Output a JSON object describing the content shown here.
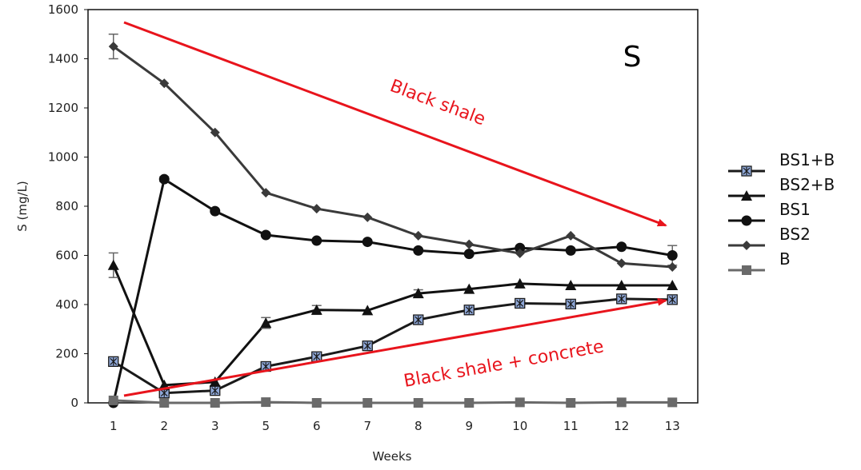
{
  "chart_data": {
    "type": "line",
    "title": "",
    "panel_label": "S",
    "xlabel": "Weeks",
    "ylabel": "S (mg/L)",
    "ylim": [
      0,
      1600
    ],
    "yticks": [
      0,
      200,
      400,
      600,
      800,
      1000,
      1200,
      1400,
      1600
    ],
    "categories": [
      "1",
      "2",
      "3",
      "5",
      "6",
      "7",
      "8",
      "9",
      "10",
      "11",
      "12",
      "13"
    ],
    "grid": false,
    "legend_position": "right",
    "series": [
      {
        "name": "BS1+B",
        "marker": "square-x",
        "color": "#1a1a1a",
        "marker_fill": "#8fa8d8",
        "values": [
          168,
          40,
          50,
          148,
          188,
          232,
          338,
          378,
          405,
          402,
          423,
          420
        ],
        "errors": [
          0,
          0,
          0,
          0,
          0,
          0,
          0,
          0,
          0,
          0,
          0,
          0
        ]
      },
      {
        "name": "BS2+B",
        "marker": "triangle",
        "color": "#111111",
        "values": [
          560,
          72,
          85,
          325,
          378,
          376,
          445,
          463,
          485,
          478,
          478,
          478
        ],
        "errors": [
          50,
          0,
          0,
          22,
          18,
          0,
          15,
          0,
          0,
          0,
          0,
          0
        ]
      },
      {
        "name": "BS1",
        "marker": "circle",
        "color": "#111111",
        "values": [
          0,
          910,
          780,
          683,
          660,
          655,
          620,
          606,
          630,
          620,
          635,
          600
        ],
        "errors": [
          0,
          10,
          0,
          0,
          0,
          0,
          0,
          0,
          0,
          0,
          0,
          40
        ]
      },
      {
        "name": "BS2",
        "marker": "diamond",
        "color": "#3a3a3a",
        "values": [
          1450,
          1300,
          1100,
          855,
          790,
          755,
          680,
          645,
          608,
          680,
          568,
          553
        ],
        "errors": [
          50,
          0,
          0,
          0,
          0,
          0,
          0,
          0,
          0,
          0,
          0,
          0
        ]
      },
      {
        "name": "B",
        "marker": "square",
        "color": "#6a6a6a",
        "values": [
          10,
          0,
          0,
          3,
          0,
          0,
          0,
          0,
          2,
          0,
          2,
          2
        ],
        "errors": [
          0,
          0,
          0,
          0,
          0,
          0,
          0,
          0,
          0,
          0,
          0,
          0
        ]
      }
    ],
    "annotations": [
      {
        "text": "Black shale",
        "color": "#e8141c"
      },
      {
        "text": "Black shale + concrete",
        "color": "#e8141c"
      }
    ]
  }
}
